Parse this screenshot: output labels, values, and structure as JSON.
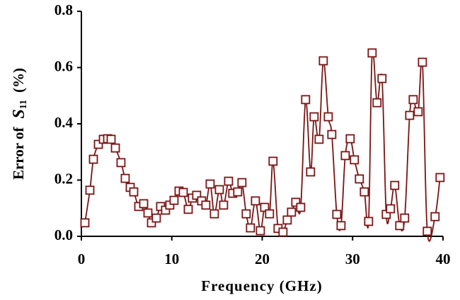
{
  "chart_data": {
    "type": "line",
    "xlabel": "Frequency (GHz)",
    "ylabel": {
      "prefix": "Error of",
      "symbol": "S",
      "subscript": "11",
      "suffix": "(%)"
    },
    "xlim": [
      0,
      40
    ],
    "xticks": [
      0,
      10,
      20,
      30,
      40
    ],
    "ylim": [
      0,
      0.8
    ],
    "yticks": [
      {
        "value": 0,
        "label": "0.0"
      },
      {
        "value": 0.2,
        "label": "0.2"
      },
      {
        "value": 0.4,
        "label": "0.4"
      },
      {
        "value": 0.6,
        "label": "0.6"
      },
      {
        "value": 0.8,
        "label": "0.8"
      }
    ],
    "grid": false,
    "series": [
      {
        "color": "#7a1414",
        "marker": "square",
        "x": [
          0.39,
          0.94,
          1.33,
          1.88,
          2.43,
          2.9,
          3.29,
          3.76,
          4.38,
          4.85,
          5.4,
          5.79,
          6.34,
          6.89,
          7.36,
          7.75,
          8.29,
          8.76,
          9.31,
          9.78,
          10.25,
          10.8,
          11.27,
          11.82,
          12.28,
          12.75,
          13.3,
          13.77,
          14.24,
          14.71,
          15.26,
          15.73,
          16.28,
          16.74,
          17.29,
          17.76,
          18.23,
          18.7,
          19.25,
          19.8,
          20.27,
          20.81,
          21.2,
          21.75,
          22.3,
          22.77,
          23.24,
          23.71,
          24.26,
          24.8,
          25.35,
          25.74,
          26.29,
          26.76,
          27.31,
          27.7,
          28.25,
          28.72,
          29.19,
          29.73,
          30.2,
          30.75,
          31.3,
          31.77,
          32.16,
          32.7,
          33.25,
          33.72,
          34.19,
          34.66,
          35.21,
          35.76,
          36.31,
          36.7,
          37.25,
          37.72,
          38.26,
          39.12,
          39.67
        ],
        "values": [
          0.048,
          0.164,
          0.274,
          0.327,
          0.345,
          0.347,
          0.345,
          0.314,
          0.262,
          0.206,
          0.174,
          0.158,
          0.106,
          0.116,
          0.083,
          0.048,
          0.065,
          0.106,
          0.093,
          0.111,
          0.128,
          0.161,
          0.156,
          0.096,
          0.136,
          0.146,
          0.126,
          0.111,
          0.186,
          0.08,
          0.166,
          0.111,
          0.196,
          0.153,
          0.158,
          0.191,
          0.08,
          0.03,
          0.126,
          0.02,
          0.103,
          0.08,
          0.267,
          0.028,
          0.015,
          0.058,
          0.086,
          0.121,
          0.103,
          0.486,
          0.229,
          0.425,
          0.345,
          0.624,
          0.425,
          0.362,
          0.078,
          0.038,
          0.287,
          0.347,
          0.272,
          0.204,
          0.158,
          0.053,
          0.652,
          0.475,
          0.561,
          0.078,
          0.098,
          0.181,
          0.038,
          0.065,
          0.43,
          0.486,
          0.443,
          0.619,
          0.018,
          0.07,
          0.209
        ]
      }
    ]
  }
}
